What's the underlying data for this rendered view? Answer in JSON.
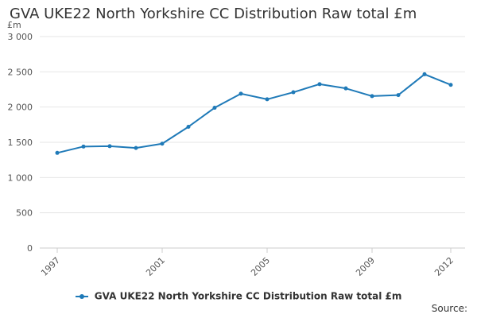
{
  "chart_data": {
    "type": "line",
    "title": "GVA UKE22 North Yorkshire CC Distribution Raw total £m",
    "unit": "£m",
    "x": [
      1997,
      1998,
      1999,
      2000,
      2001,
      2002,
      2003,
      2004,
      2005,
      2006,
      2007,
      2008,
      2009,
      2010,
      2011,
      2012
    ],
    "x_tick_labels": [
      "1997",
      "2001",
      "2005",
      "2009",
      "2012"
    ],
    "y_tick_labels": [
      "0",
      "500",
      "1 000",
      "1 500",
      "2 000",
      "2 500",
      "3 000"
    ],
    "ylim": [
      0,
      3000
    ],
    "grid": true,
    "legend_position": "bottom",
    "series": [
      {
        "name": "GVA UKE22 North Yorkshire CC Distribution Raw total £m",
        "values": [
          1350,
          1440,
          1445,
          1420,
          1480,
          1720,
          1990,
          2190,
          2110,
          2210,
          2325,
          2265,
          2155,
          2170,
          2465,
          2315
        ]
      }
    ],
    "source_label": "Source:",
    "colors": {
      "series": "#1f7ab8",
      "grid": "#e6e6e6",
      "axis": "#cccccc"
    }
  }
}
